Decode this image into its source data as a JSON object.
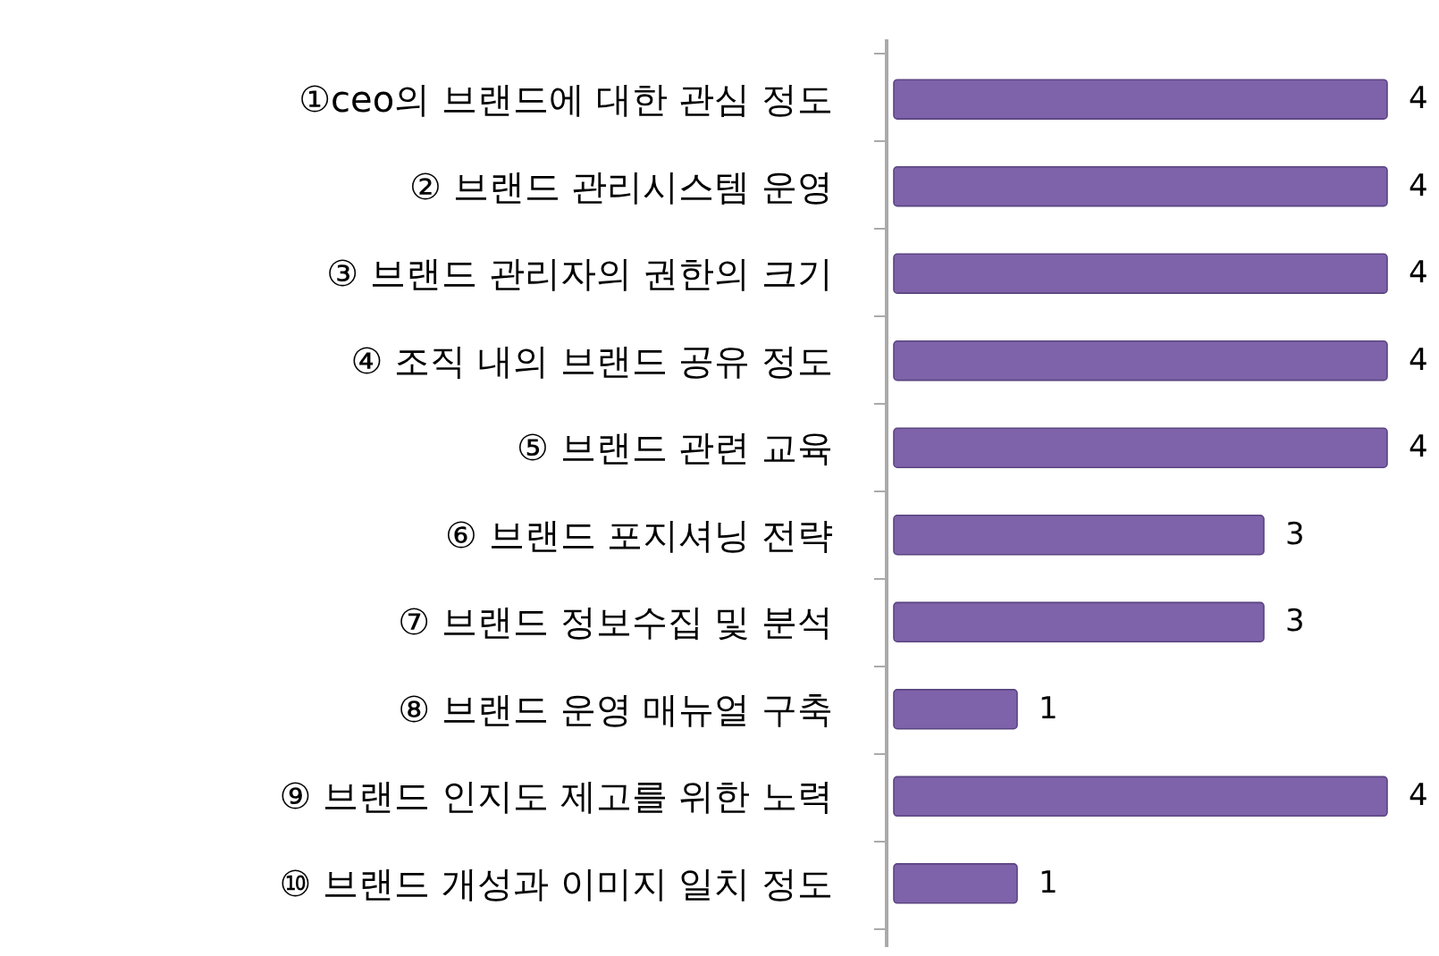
{
  "chart_data": {
    "type": "bar",
    "orientation": "horizontal",
    "categories": [
      "①ceo의 브랜드에 대한 관심 정도",
      "② 브랜드 관리시스템 운영",
      "③ 브랜드 관리자의 권한의 크기",
      "④ 조직 내의 브랜드 공유 정도",
      "⑤ 브랜드 관련 교육",
      "⑥ 브랜드 포지셔닝 전략",
      "⑦ 브랜드 정보수집 및 분석",
      "⑧ 브랜드 운영 매뉴얼 구축",
      "⑨ 브랜드 인지도 제고를 위한 노력",
      "⑩ 브랜드 개성과 이미지 일치 정도"
    ],
    "values": [
      4,
      4,
      4,
      4,
      4,
      3,
      3,
      1,
      4,
      1
    ],
    "color": "#7e62aa",
    "data_labels": true
  }
}
